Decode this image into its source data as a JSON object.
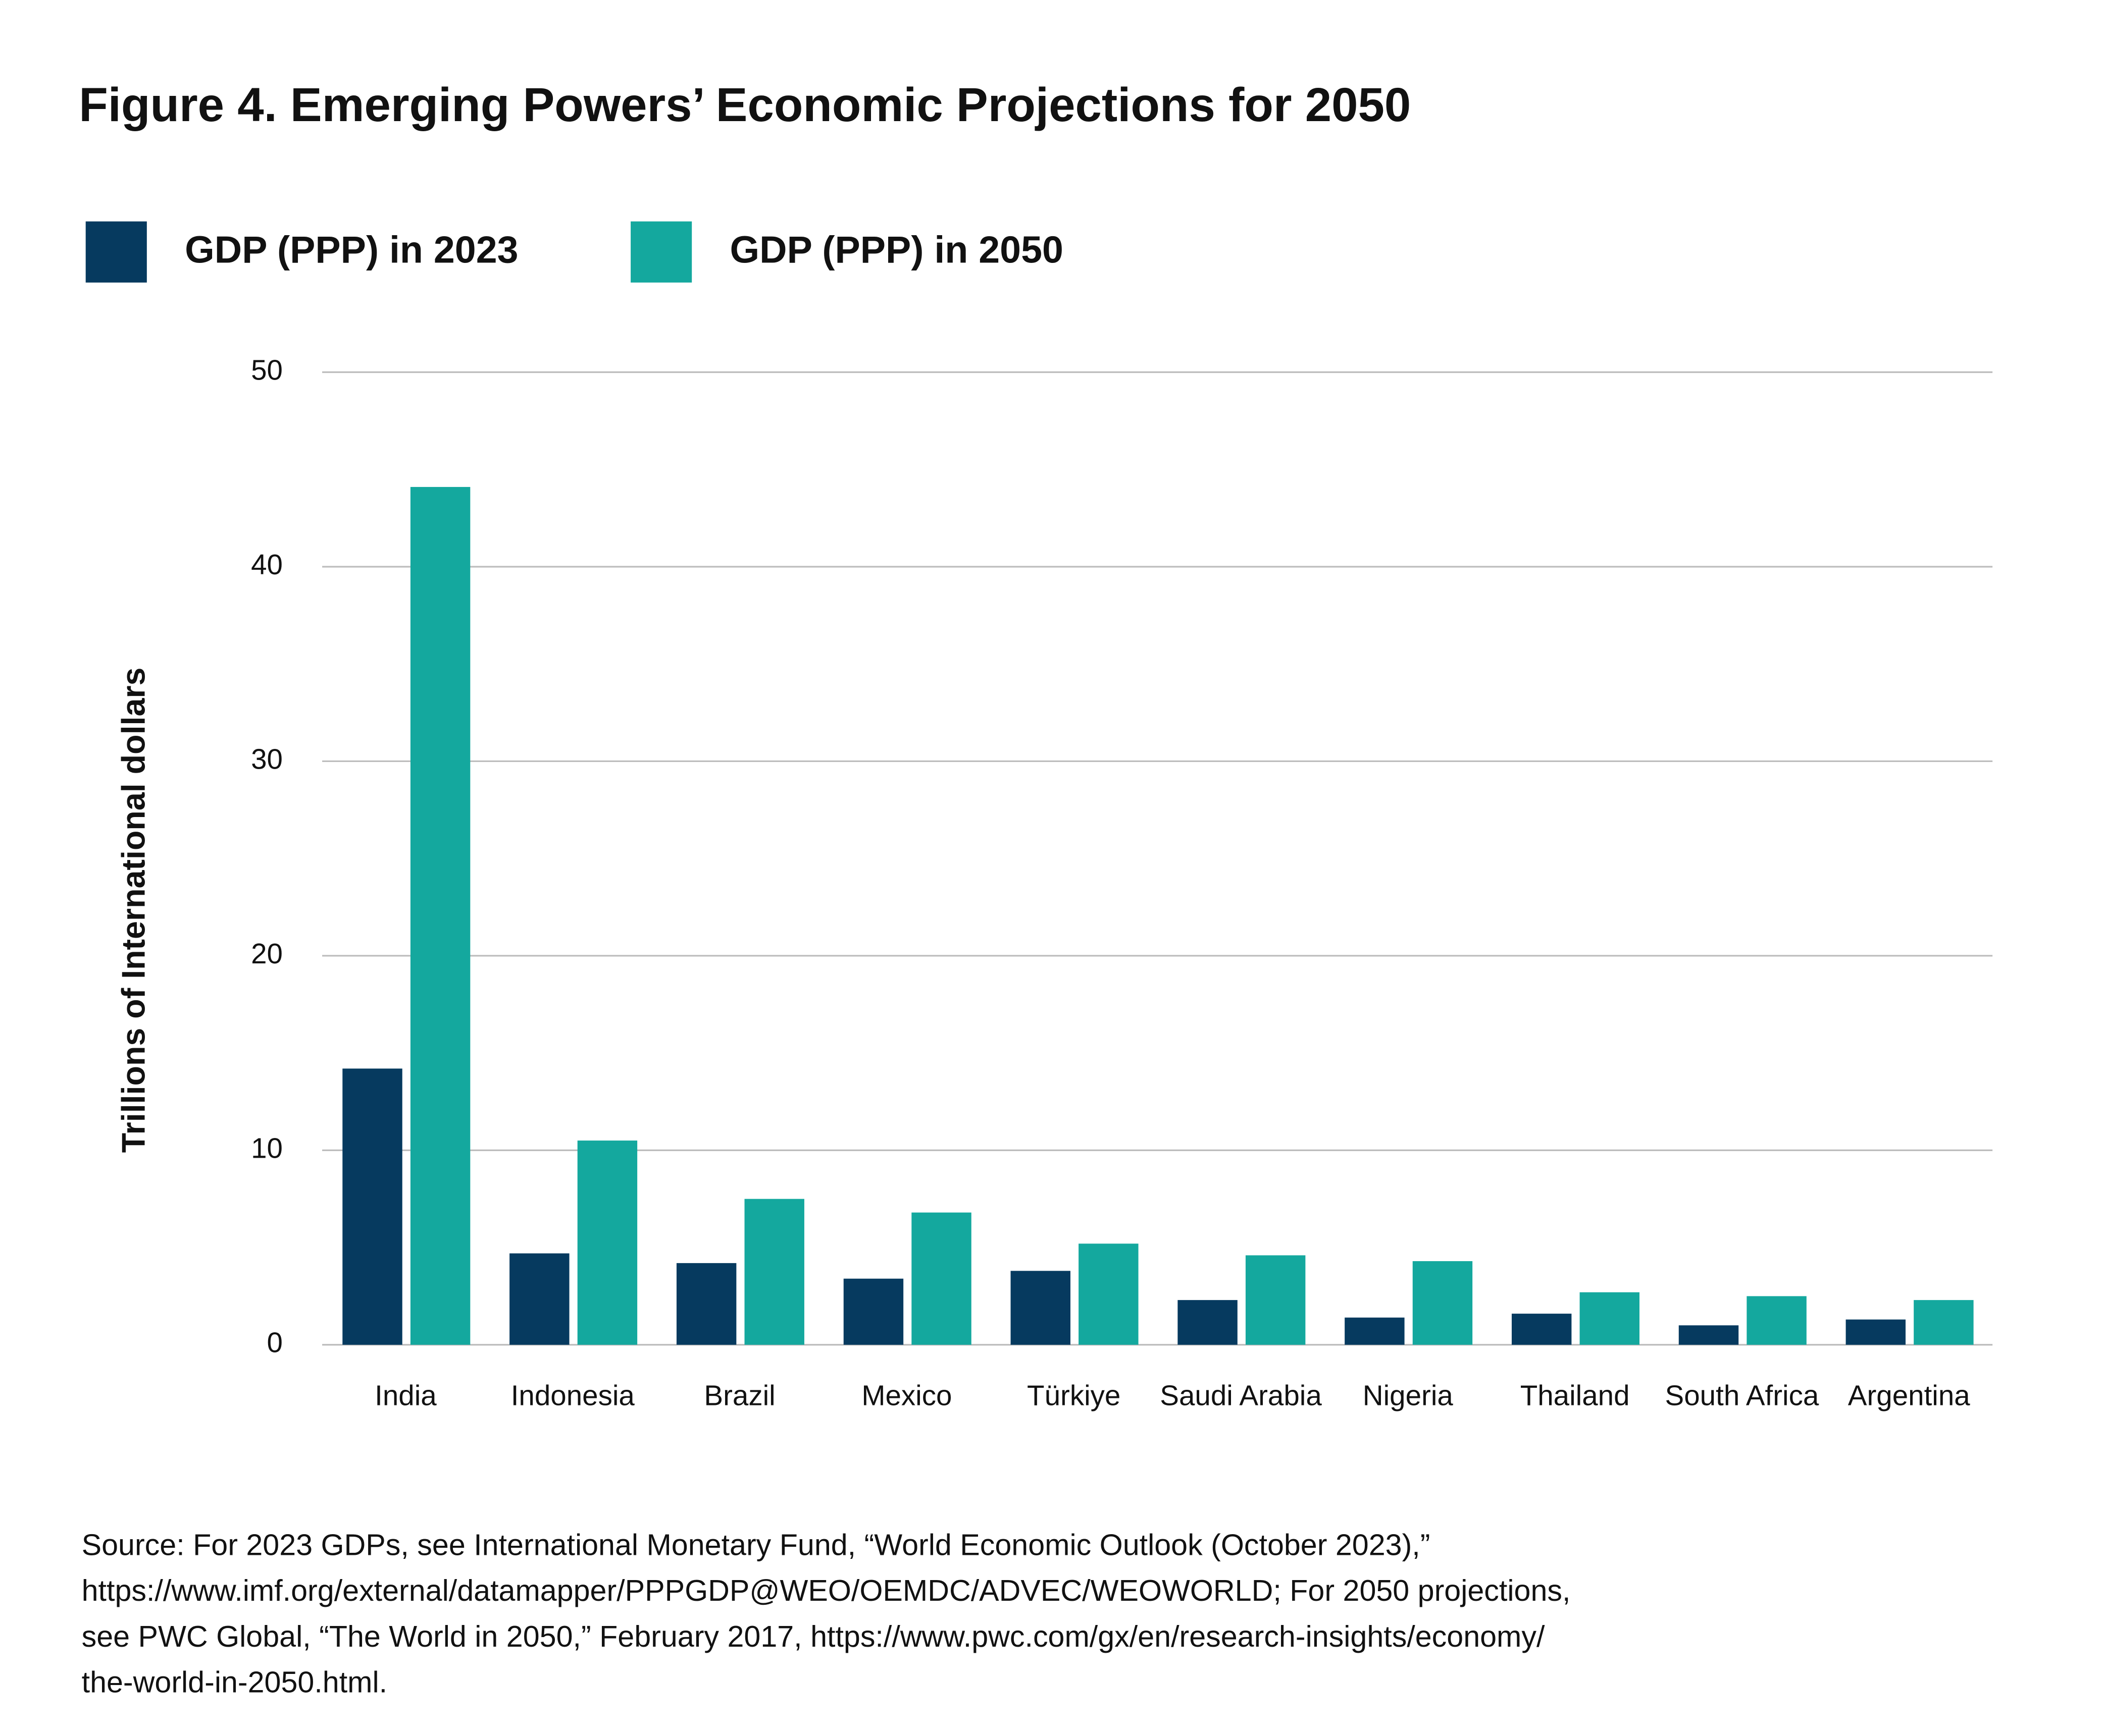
{
  "chart_data": {
    "type": "bar",
    "title": "Figure 4. Emerging Powers’ Economic Projections for 2050",
    "y_label": "Trillions of International dollars",
    "categories": [
      "India",
      "Indonesia",
      "Brazil",
      "Mexico",
      "Türkiye",
      "Saudi Arabia",
      "Nigeria",
      "Thailand",
      "South Africa",
      "Argentina"
    ],
    "series": [
      {
        "name": "GDP (PPP) in 2023",
        "color": "#063a5f",
        "values": [
          14.2,
          4.7,
          4.2,
          3.4,
          3.8,
          2.3,
          1.4,
          1.6,
          1.0,
          1.3
        ]
      },
      {
        "name": "GDP (PPP) in 2050",
        "color": "#14a89e",
        "values": [
          44.1,
          10.5,
          7.5,
          6.8,
          5.2,
          4.6,
          4.3,
          2.7,
          2.5,
          2.3
        ]
      }
    ],
    "ylim": [
      0,
      50
    ],
    "yticks": [
      0,
      10,
      20,
      30,
      40,
      50
    ],
    "grid": true,
    "source": [
      "Source: For 2023 GDPs, see International Monetary Fund, “World Economic Outlook (October 2023),”",
      "https://www.imf.org/external/datamapper/PPPGDP@WEO/OEMDC/ADVEC/WEOWORLD; For 2050 projections,",
      "see PWC Global, “The World in 2050,” February 2017, https://www.pwc.com/gx/en/research-insights/economy/",
      "the-world-in-2050.html."
    ]
  }
}
